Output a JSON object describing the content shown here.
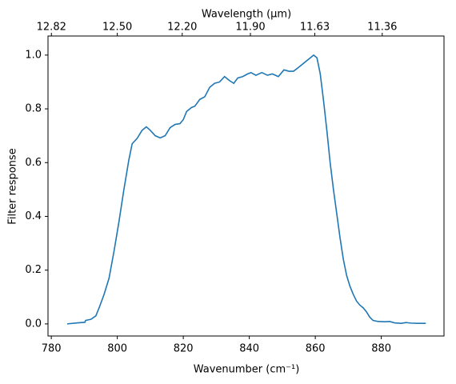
{
  "chart_data": {
    "type": "line",
    "xlabel": "Wavenumber (cm⁻¹)",
    "ylabel": "Filter response",
    "x2label": "Wavelength (μm)",
    "x": [
      784.8,
      788,
      790.2,
      790.4,
      792,
      793.5,
      794.5,
      796,
      797.5,
      799,
      800.5,
      802,
      803.5,
      804.5,
      806,
      807.5,
      808.8,
      810,
      811.5,
      813,
      814.5,
      816,
      817.5,
      819,
      820,
      821,
      822.5,
      823.5,
      825,
      826.5,
      828,
      829.5,
      831,
      832.5,
      834,
      835.3,
      836.5,
      838,
      839.5,
      840.5,
      842,
      843.8,
      845.5,
      847,
      848.8,
      850.5,
      852,
      853.4,
      855,
      857,
      858.5,
      859.5,
      860.5,
      861.5,
      862.5,
      863.5,
      864.5,
      865.5,
      866.5,
      867.5,
      868.5,
      869.5,
      870.5,
      871.5,
      872.5,
      873.5,
      874.5,
      875.5,
      876.5,
      877.5,
      879,
      881,
      882.5,
      884,
      886,
      887.5,
      889,
      891,
      893.5
    ],
    "series": [
      {
        "color": "#1f77b4",
        "values": [
          0.0,
          0.004,
          0.006,
          0.013,
          0.017,
          0.03,
          0.06,
          0.11,
          0.17,
          0.27,
          0.38,
          0.5,
          0.61,
          0.67,
          0.69,
          0.72,
          0.733,
          0.72,
          0.7,
          0.692,
          0.7,
          0.73,
          0.742,
          0.745,
          0.76,
          0.79,
          0.805,
          0.81,
          0.835,
          0.845,
          0.88,
          0.895,
          0.9,
          0.92,
          0.905,
          0.895,
          0.915,
          0.92,
          0.93,
          0.935,
          0.925,
          0.935,
          0.925,
          0.93,
          0.92,
          0.945,
          0.94,
          0.94,
          0.955,
          0.975,
          0.99,
          1.0,
          0.99,
          0.93,
          0.83,
          0.72,
          0.6,
          0.5,
          0.41,
          0.32,
          0.24,
          0.18,
          0.14,
          0.11,
          0.085,
          0.07,
          0.06,
          0.045,
          0.025,
          0.013,
          0.009,
          0.008,
          0.009,
          0.004,
          0.002,
          0.005,
          0.003,
          0.002,
          0.002
        ]
      }
    ],
    "xlim": [
      779,
      899
    ],
    "ylim": [
      -0.045,
      1.071
    ],
    "xticks": [
      780,
      800,
      820,
      840,
      860,
      880
    ],
    "yticks": [
      {
        "value": 0.0,
        "label": "0.0"
      },
      0.2,
      0.4,
      0.6,
      0.8,
      {
        "value": 1.0,
        "label": "1.0"
      }
    ],
    "x2ticks": [
      12.82,
      {
        "value": 12.5,
        "label": "12.50"
      },
      {
        "value": 12.2,
        "label": "12.20"
      },
      {
        "value": 11.9,
        "label": "11.90"
      },
      11.63,
      11.36
    ]
  }
}
